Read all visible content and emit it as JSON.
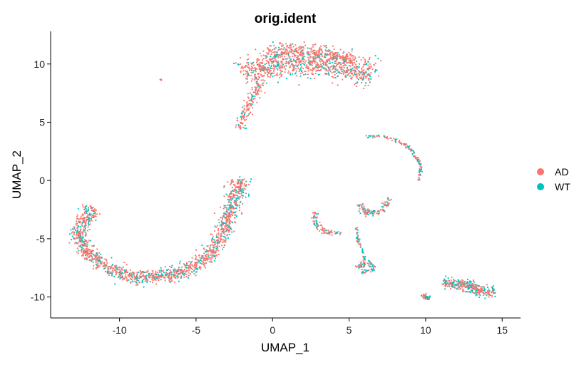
{
  "chart_data": {
    "type": "scatter",
    "title": "orig.ident",
    "xlabel": "UMAP_1",
    "ylabel": "UMAP_2",
    "xlim": [
      -14.5,
      16.2
    ],
    "ylim": [
      -11.8,
      12.8
    ],
    "xticks": [
      -10,
      -5,
      0,
      5,
      10,
      15
    ],
    "yticks": [
      -10,
      -5,
      0,
      5,
      10
    ],
    "grid": false,
    "legend_position": "right",
    "series": [
      {
        "name": "AD",
        "color": "#F8766D"
      },
      {
        "name": "WT",
        "color": "#00BFC4"
      }
    ],
    "clusters": [
      {
        "id": "top-blob",
        "shape": "curve",
        "width": 1.1,
        "n": 900,
        "wt_fraction": 0.25,
        "path": [
          [
            -1.8,
            9.0
          ],
          [
            0.0,
            10.0
          ],
          [
            2.5,
            10.2
          ],
          [
            5.0,
            9.6
          ],
          [
            6.5,
            9.0
          ]
        ]
      },
      {
        "id": "top-blob-upper",
        "shape": "curve",
        "width": 0.6,
        "n": 300,
        "wt_fraction": 0.15,
        "path": [
          [
            -0.5,
            10.8
          ],
          [
            1.5,
            11.2
          ],
          [
            3.5,
            10.9
          ],
          [
            5.3,
            10.4
          ]
        ]
      },
      {
        "id": "top-tail",
        "shape": "curve",
        "width": 0.35,
        "n": 140,
        "wt_fraction": 0.2,
        "path": [
          [
            -2.2,
            4.5
          ],
          [
            -1.5,
            6.5
          ],
          [
            -0.8,
            8.5
          ]
        ]
      },
      {
        "id": "big-arc",
        "shape": "curve",
        "width": 0.55,
        "n": 1500,
        "wt_fraction": 0.3,
        "path": [
          [
            -11.8,
            -2.3
          ],
          [
            -12.8,
            -4.8
          ],
          [
            -11.5,
            -7.0
          ],
          [
            -9.0,
            -8.4
          ],
          [
            -6.0,
            -8.0
          ],
          [
            -4.2,
            -6.5
          ],
          [
            -3.2,
            -4.5
          ],
          [
            -2.6,
            -2.0
          ],
          [
            -2.0,
            0.2
          ]
        ]
      },
      {
        "id": "right-arc",
        "shape": "curve",
        "width": 0.12,
        "n": 130,
        "wt_fraction": 0.35,
        "path": [
          [
            6.1,
            3.8
          ],
          [
            7.3,
            3.8
          ],
          [
            8.8,
            3.0
          ],
          [
            9.7,
            1.3
          ],
          [
            9.5,
            0.0
          ]
        ]
      },
      {
        "id": "mid-structure-a",
        "shape": "curve",
        "width": 0.2,
        "n": 90,
        "wt_fraction": 0.35,
        "path": [
          [
            2.7,
            -2.7
          ],
          [
            2.9,
            -4.0
          ],
          [
            3.6,
            -4.5
          ],
          [
            4.4,
            -4.5
          ]
        ]
      },
      {
        "id": "mid-structure-b",
        "shape": "curve",
        "width": 0.25,
        "n": 110,
        "wt_fraction": 0.35,
        "path": [
          [
            5.7,
            -2.0
          ],
          [
            6.0,
            -2.8
          ],
          [
            7.0,
            -2.7
          ],
          [
            7.7,
            -1.5
          ]
        ]
      },
      {
        "id": "mid-structure-c",
        "shape": "curve",
        "width": 0.1,
        "n": 60,
        "wt_fraction": 0.4,
        "path": [
          [
            5.5,
            -4.0
          ],
          [
            5.6,
            -5.3
          ],
          [
            6.0,
            -6.5
          ],
          [
            6.0,
            -7.5
          ]
        ]
      },
      {
        "id": "mid-ring",
        "shape": "curve",
        "width": 0.2,
        "n": 70,
        "wt_fraction": 0.5,
        "path": [
          [
            5.5,
            -7.5
          ],
          [
            6.2,
            -6.9
          ],
          [
            6.6,
            -7.6
          ],
          [
            5.8,
            -7.9
          ]
        ]
      },
      {
        "id": "bottom-right",
        "shape": "curve",
        "width": 0.45,
        "n": 320,
        "wt_fraction": 0.4,
        "path": [
          [
            11.2,
            -8.8
          ],
          [
            12.5,
            -8.9
          ],
          [
            13.8,
            -9.6
          ],
          [
            14.5,
            -9.6
          ]
        ]
      },
      {
        "id": "bottom-right-small",
        "shape": "curve",
        "width": 0.2,
        "n": 45,
        "wt_fraction": 0.3,
        "path": [
          [
            9.8,
            -9.8
          ],
          [
            10.2,
            -10.2
          ]
        ]
      },
      {
        "id": "lone-points",
        "shape": "curve",
        "width": 0.05,
        "n": 3,
        "wt_fraction": 0.0,
        "path": [
          [
            -7.3,
            8.6
          ],
          [
            -7.2,
            8.7
          ]
        ]
      }
    ]
  }
}
